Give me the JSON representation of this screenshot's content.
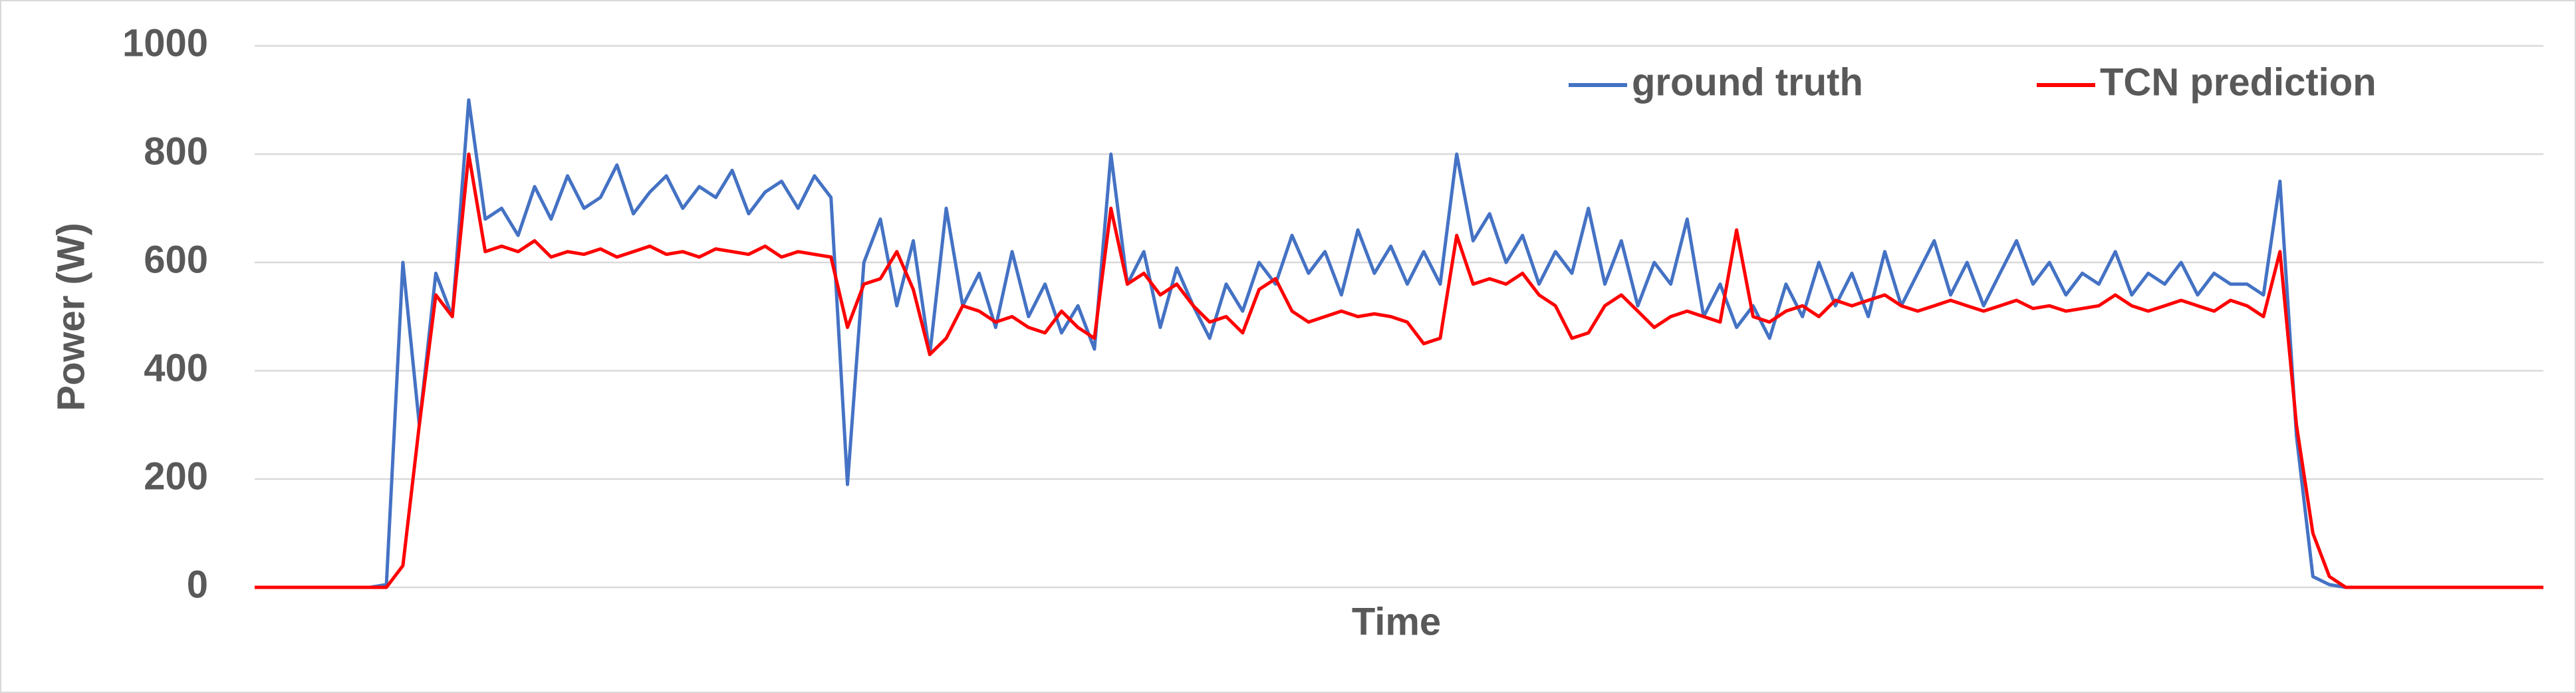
{
  "chart_data": {
    "type": "line",
    "xlabel": "Time",
    "ylabel": "Power (W)",
    "ylim": [
      0,
      1000
    ],
    "yticks": [
      0,
      200,
      400,
      600,
      800,
      1000
    ],
    "grid": true,
    "legend": "top-right",
    "series": [
      {
        "name": "ground truth",
        "color": "#4472c4",
        "values": [
          0,
          0,
          0,
          0,
          0,
          0,
          0,
          0,
          5,
          600,
          300,
          580,
          500,
          900,
          680,
          700,
          650,
          740,
          680,
          760,
          700,
          720,
          780,
          690,
          730,
          760,
          700,
          740,
          720,
          770,
          690,
          730,
          750,
          700,
          760,
          720,
          190,
          600,
          680,
          520,
          640,
          430,
          700,
          520,
          580,
          480,
          620,
          500,
          560,
          470,
          520,
          440,
          800,
          560,
          620,
          480,
          590,
          520,
          460,
          560,
          510,
          600,
          560,
          650,
          580,
          620,
          540,
          660,
          580,
          630,
          560,
          620,
          560,
          800,
          640,
          690,
          600,
          650,
          560,
          620,
          580,
          700,
          560,
          640,
          520,
          600,
          560,
          680,
          500,
          560,
          480,
          520,
          460,
          560,
          500,
          600,
          520,
          580,
          500,
          620,
          520,
          580,
          640,
          540,
          600,
          520,
          580,
          640,
          560,
          600,
          540,
          580,
          560,
          620,
          540,
          580,
          560,
          600,
          540,
          580,
          560,
          560,
          540,
          750,
          280,
          20,
          5,
          0,
          0,
          0,
          0,
          0,
          0,
          0,
          0,
          0,
          0,
          0,
          0,
          0
        ]
      },
      {
        "name": "TCN prediction",
        "color": "#ff0000",
        "values": [
          0,
          0,
          0,
          0,
          0,
          0,
          0,
          0,
          0,
          40,
          300,
          540,
          500,
          800,
          620,
          630,
          620,
          640,
          610,
          620,
          615,
          625,
          610,
          620,
          630,
          615,
          620,
          610,
          625,
          620,
          615,
          630,
          610,
          620,
          615,
          610,
          480,
          560,
          570,
          620,
          550,
          430,
          460,
          520,
          510,
          490,
          500,
          480,
          470,
          510,
          480,
          460,
          700,
          560,
          580,
          540,
          560,
          520,
          490,
          500,
          470,
          550,
          570,
          510,
          490,
          500,
          510,
          500,
          505,
          500,
          490,
          450,
          460,
          650,
          560,
          570,
          560,
          580,
          540,
          520,
          460,
          470,
          520,
          540,
          510,
          480,
          500,
          510,
          500,
          490,
          660,
          500,
          490,
          510,
          520,
          500,
          530,
          520,
          530,
          540,
          520,
          510,
          520,
          530,
          520,
          510,
          520,
          530,
          515,
          520,
          510,
          515,
          520,
          540,
          520,
          510,
          520,
          530,
          520,
          510,
          530,
          520,
          500,
          620,
          300,
          100,
          20,
          0,
          0,
          0,
          0,
          0,
          0,
          0,
          0,
          0,
          0,
          0,
          0,
          0
        ]
      }
    ]
  }
}
